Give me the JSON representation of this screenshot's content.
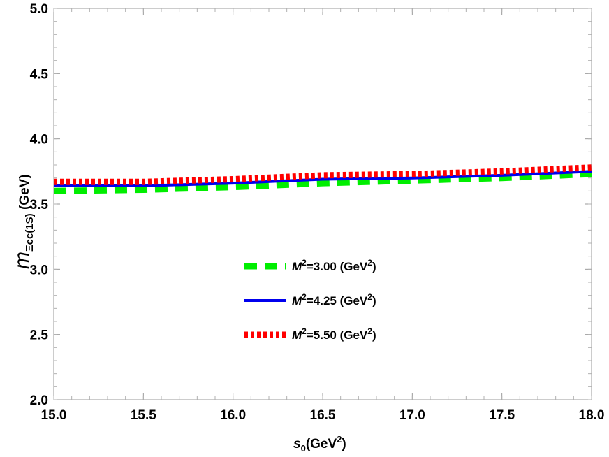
{
  "chart_data": {
    "type": "line",
    "xlabel": {
      "main": "s",
      "sub": "0",
      "rest": "(GeV",
      "sup": "2",
      "close": ")"
    },
    "ylabel": {
      "main": "m",
      "sub": "Ξcc(1S)",
      "rest": " (GeV)"
    },
    "xlim": [
      15.0,
      18.0
    ],
    "ylim": [
      2.0,
      5.0
    ],
    "xticks": [
      "15.0",
      "15.5",
      "16.0",
      "16.5",
      "17.0",
      "17.5",
      "18.0"
    ],
    "yticks": [
      "2.0",
      "2.5",
      "3.0",
      "3.5",
      "4.0",
      "4.5",
      "5.0"
    ],
    "xtick_values": [
      15.0,
      15.5,
      16.0,
      16.5,
      17.0,
      17.5,
      18.0
    ],
    "ytick_values": [
      2.0,
      2.5,
      3.0,
      3.5,
      4.0,
      4.5,
      5.0
    ],
    "grid": false,
    "legend_position": "center",
    "series": [
      {
        "name": "M2=3.00 (GeV2)",
        "label": {
          "M": "M",
          "sup1": "2",
          "mid": "=3.00 (GeV",
          "sup2": "2",
          "close": ")"
        },
        "style": "dashed",
        "color": "#00ee00",
        "x": [
          15.0,
          15.5,
          16.0,
          16.5,
          17.0,
          17.5,
          18.0
        ],
        "y": [
          3.6,
          3.61,
          3.63,
          3.66,
          3.68,
          3.7,
          3.73
        ]
      },
      {
        "name": "M2=4.25 (GeV2)",
        "label": {
          "M": "M",
          "sup1": "2",
          "mid": "=4.25 (GeV",
          "sup2": "2",
          "close": ")"
        },
        "style": "solid",
        "color": "#0000ee",
        "x": [
          15.0,
          15.5,
          16.0,
          16.5,
          17.0,
          17.5,
          18.0
        ],
        "y": [
          3.64,
          3.64,
          3.66,
          3.69,
          3.7,
          3.72,
          3.75
        ]
      },
      {
        "name": "M2=5.50 (GeV2)",
        "label": {
          "M": "M",
          "sup1": "2",
          "mid": "=5.50 (GeV",
          "sup2": "2",
          "close": ")"
        },
        "style": "dotted",
        "color": "#ff0000",
        "x": [
          15.0,
          15.5,
          16.0,
          16.5,
          17.0,
          17.5,
          18.0
        ],
        "y": [
          3.67,
          3.67,
          3.69,
          3.72,
          3.73,
          3.75,
          3.78
        ]
      }
    ]
  }
}
